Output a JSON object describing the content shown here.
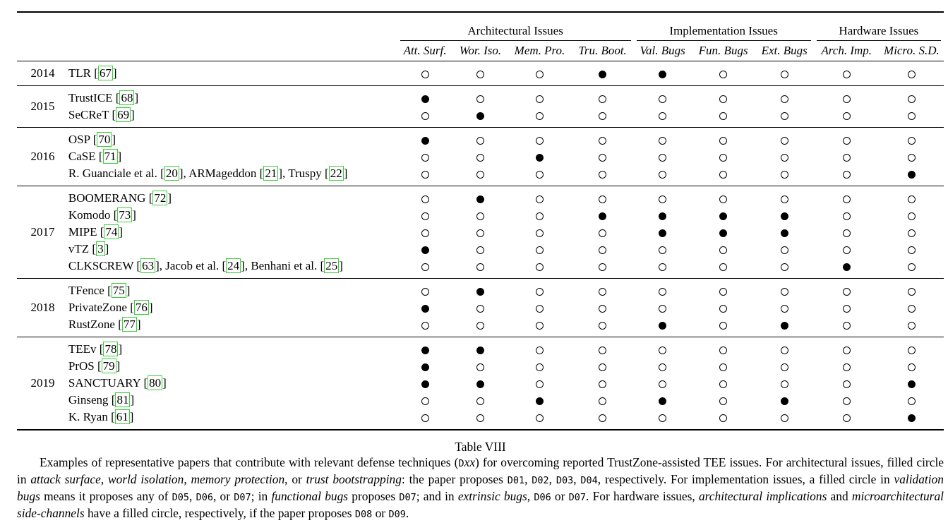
{
  "groups": [
    {
      "label": "Architectural Issues",
      "span": 4
    },
    {
      "label": "Implementation Issues",
      "span": 3
    },
    {
      "label": "Hardware Issues",
      "span": 2
    }
  ],
  "columns": [
    "Att. Surf.",
    "Wor. Iso.",
    "Mem. Pro.",
    "Tru. Boot.",
    "Val. Bugs",
    "Fun. Bugs",
    "Ext. Bugs",
    "Arch. Imp.",
    "Micro. S.D."
  ],
  "year_groups": [
    {
      "year": "2014",
      "rows": [
        {
          "entries": [
            {
              "name": "TLR",
              "ref": "67"
            }
          ],
          "marks": [
            0,
            0,
            0,
            1,
            1,
            0,
            0,
            0,
            0
          ]
        }
      ]
    },
    {
      "year": "2015",
      "rows": [
        {
          "entries": [
            {
              "name": "TrustICE",
              "ref": "68"
            }
          ],
          "marks": [
            1,
            0,
            0,
            0,
            0,
            0,
            0,
            0,
            0
          ]
        },
        {
          "entries": [
            {
              "name": "SeCReT",
              "ref": "69"
            }
          ],
          "marks": [
            0,
            1,
            0,
            0,
            0,
            0,
            0,
            0,
            0
          ]
        }
      ]
    },
    {
      "year": "2016",
      "rows": [
        {
          "entries": [
            {
              "name": "OSP",
              "ref": "70"
            }
          ],
          "marks": [
            1,
            0,
            0,
            0,
            0,
            0,
            0,
            0,
            0
          ]
        },
        {
          "entries": [
            {
              "name": "CaSE",
              "ref": "71"
            }
          ],
          "marks": [
            0,
            0,
            1,
            0,
            0,
            0,
            0,
            0,
            0
          ]
        },
        {
          "entries": [
            {
              "name": "R. Guanciale et al.",
              "ref": "20"
            },
            {
              "name": "ARMageddon",
              "ref": "21"
            },
            {
              "name": "Truspy",
              "ref": "22"
            }
          ],
          "marks": [
            0,
            0,
            0,
            0,
            0,
            0,
            0,
            0,
            1
          ]
        }
      ]
    },
    {
      "year": "2017",
      "rows": [
        {
          "entries": [
            {
              "name": "BOOMERANG",
              "ref": "72"
            }
          ],
          "marks": [
            0,
            1,
            0,
            0,
            0,
            0,
            0,
            0,
            0
          ]
        },
        {
          "entries": [
            {
              "name": "Komodo",
              "ref": "73"
            }
          ],
          "marks": [
            0,
            0,
            0,
            1,
            1,
            1,
            1,
            0,
            0
          ]
        },
        {
          "entries": [
            {
              "name": "MIPE",
              "ref": "74"
            }
          ],
          "marks": [
            0,
            0,
            0,
            0,
            1,
            1,
            1,
            0,
            0
          ]
        },
        {
          "entries": [
            {
              "name": "vTZ",
              "ref": "3"
            }
          ],
          "marks": [
            1,
            0,
            0,
            0,
            0,
            0,
            0,
            0,
            0
          ]
        },
        {
          "entries": [
            {
              "name": "CLKSCREW",
              "ref": "63"
            },
            {
              "name": "Jacob et al.",
              "ref": "24"
            },
            {
              "name": "Benhani et al.",
              "ref": "25"
            }
          ],
          "marks": [
            0,
            0,
            0,
            0,
            0,
            0,
            0,
            1,
            0
          ]
        }
      ]
    },
    {
      "year": "2018",
      "rows": [
        {
          "entries": [
            {
              "name": "TFence",
              "ref": "75"
            }
          ],
          "marks": [
            0,
            1,
            0,
            0,
            0,
            0,
            0,
            0,
            0
          ]
        },
        {
          "entries": [
            {
              "name": "PrivateZone",
              "ref": "76"
            }
          ],
          "marks": [
            1,
            0,
            0,
            0,
            0,
            0,
            0,
            0,
            0
          ]
        },
        {
          "entries": [
            {
              "name": "RustZone",
              "ref": "77"
            }
          ],
          "marks": [
            0,
            0,
            0,
            0,
            1,
            0,
            1,
            0,
            0
          ]
        }
      ]
    },
    {
      "year": "2019",
      "rows": [
        {
          "entries": [
            {
              "name": "TEEv",
              "ref": "78"
            }
          ],
          "marks": [
            1,
            1,
            0,
            0,
            0,
            0,
            0,
            0,
            0
          ]
        },
        {
          "entries": [
            {
              "name": "PrOS",
              "ref": "79"
            }
          ],
          "marks": [
            1,
            0,
            0,
            0,
            0,
            0,
            0,
            0,
            0
          ]
        },
        {
          "entries": [
            {
              "name": "SANCTUARY",
              "ref": "80"
            }
          ],
          "marks": [
            1,
            1,
            0,
            0,
            0,
            0,
            0,
            0,
            1
          ]
        },
        {
          "entries": [
            {
              "name": "Ginseng",
              "ref": "81"
            }
          ],
          "marks": [
            0,
            0,
            1,
            0,
            1,
            0,
            1,
            0,
            0
          ]
        },
        {
          "entries": [
            {
              "name": "K. Ryan",
              "ref": "61"
            }
          ],
          "marks": [
            0,
            0,
            0,
            0,
            0,
            0,
            0,
            0,
            1
          ]
        }
      ]
    }
  ],
  "caption": {
    "title": "Table VIII",
    "segments": [
      {
        "t": "Examples of representative papers that contribute with relevant defense techniques ("
      },
      {
        "t": "D",
        "mono": true
      },
      {
        "t": "xx",
        "i": true
      },
      {
        "t": ") for overcoming reported TrustZone-assisted TEE issues. For architectural issues, filled circle in "
      },
      {
        "t": "attack surface",
        "i": true
      },
      {
        "t": ", "
      },
      {
        "t": "world isolation",
        "i": true
      },
      {
        "t": ", "
      },
      {
        "t": "memory protection",
        "i": true
      },
      {
        "t": ", or "
      },
      {
        "t": "trust bootstrapping",
        "i": true
      },
      {
        "t": ": the paper proposes "
      },
      {
        "t": "D01",
        "mono": true
      },
      {
        "t": ", "
      },
      {
        "t": "D02",
        "mono": true
      },
      {
        "t": ", "
      },
      {
        "t": "D03",
        "mono": true
      },
      {
        "t": ", "
      },
      {
        "t": "D04",
        "mono": true
      },
      {
        "t": ", respectively. For implementation issues, a filled circle in "
      },
      {
        "t": "validation bugs",
        "i": true
      },
      {
        "t": " means it proposes any of "
      },
      {
        "t": "D05",
        "mono": true
      },
      {
        "t": ", "
      },
      {
        "t": "D06",
        "mono": true
      },
      {
        "t": ", or "
      },
      {
        "t": "D07",
        "mono": true
      },
      {
        "t": "; in "
      },
      {
        "t": "functional bugs",
        "i": true
      },
      {
        "t": " proposes "
      },
      {
        "t": "D07",
        "mono": true
      },
      {
        "t": "; and in "
      },
      {
        "t": "extrinsic bugs",
        "i": true
      },
      {
        "t": ", "
      },
      {
        "t": "D06",
        "mono": true
      },
      {
        "t": " or "
      },
      {
        "t": "D07",
        "mono": true
      },
      {
        "t": ". For hardware issues, "
      },
      {
        "t": "architectural implications",
        "i": true
      },
      {
        "t": " and "
      },
      {
        "t": "microarchitectural side-channels",
        "i": true
      },
      {
        "t": " have a filled circle, respectively, if the paper proposes "
      },
      {
        "t": "D08",
        "mono": true
      },
      {
        "t": " or "
      },
      {
        "t": "D09",
        "mono": true
      },
      {
        "t": "."
      }
    ]
  }
}
